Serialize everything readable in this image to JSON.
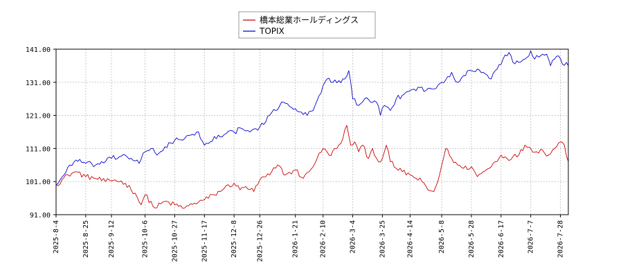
{
  "chart_data": {
    "type": "line",
    "title": "",
    "xlabel": "",
    "ylabel": "",
    "ylim": [
      91.0,
      141.0
    ],
    "yticks": [
      "141.00",
      "131.00",
      "121.00",
      "111.00",
      "101.00",
      "91.00"
    ],
    "ytick_values": [
      141,
      131,
      121,
      111,
      101,
      91
    ],
    "xtick_labels": [
      "2025-8-4",
      "2025-8-25",
      "2025-9-12",
      "2025-10-6",
      "2025-10-27",
      "2025-11-17",
      "2025-12-8",
      "2025-12-26",
      "2026-1-21",
      "2026-2-10",
      "2026-3-4",
      "2026-3-25",
      "2026-4-14",
      "2026-5-8",
      "2026-5-28",
      "2026-6-17",
      "2026-7-7",
      "2026-7-28"
    ],
    "xtick_index": [
      0,
      15,
      28,
      45,
      60,
      75,
      90,
      103,
      121,
      135,
      150,
      165,
      179,
      195,
      210,
      225,
      240,
      255
    ],
    "n_points": 260,
    "grid": true,
    "legend_position": "top-center",
    "series": [
      {
        "name": "橋本総業ホールディングス",
        "color": "#cc0000",
        "anchors": [
          [
            0,
            100
          ],
          [
            6,
            103
          ],
          [
            10,
            104
          ],
          [
            15,
            102.5
          ],
          [
            20,
            102
          ],
          [
            25,
            101
          ],
          [
            30,
            101.5
          ],
          [
            35,
            100.5
          ],
          [
            40,
            97.5
          ],
          [
            43,
            94
          ],
          [
            45,
            97
          ],
          [
            50,
            93
          ],
          [
            55,
            95
          ],
          [
            60,
            94
          ],
          [
            65,
            93
          ],
          [
            70,
            94.5
          ],
          [
            75,
            95.5
          ],
          [
            80,
            97
          ],
          [
            85,
            99
          ],
          [
            90,
            100.5
          ],
          [
            93,
            98.5
          ],
          [
            96,
            99.5
          ],
          [
            100,
            98
          ],
          [
            103,
            101.5
          ],
          [
            108,
            103
          ],
          [
            112,
            106
          ],
          [
            116,
            103
          ],
          [
            121,
            104.5
          ],
          [
            125,
            102
          ],
          [
            128,
            104
          ],
          [
            132,
            108
          ],
          [
            135,
            111
          ],
          [
            138,
            109
          ],
          [
            142,
            111
          ],
          [
            145,
            114
          ],
          [
            147,
            118
          ],
          [
            149,
            112
          ],
          [
            151,
            113
          ],
          [
            153,
            110
          ],
          [
            155,
            112
          ],
          [
            158,
            108
          ],
          [
            160,
            111
          ],
          [
            163,
            107
          ],
          [
            165,
            108
          ],
          [
            167,
            112
          ],
          [
            169,
            107
          ],
          [
            172,
            105
          ],
          [
            175,
            104
          ],
          [
            179,
            103
          ],
          [
            182,
            102
          ],
          [
            185,
            101
          ],
          [
            188,
            98.5
          ],
          [
            191,
            98
          ],
          [
            193,
            101
          ],
          [
            195,
            106
          ],
          [
            197,
            111
          ],
          [
            200,
            108
          ],
          [
            203,
            106
          ],
          [
            206,
            105
          ],
          [
            210,
            105.5
          ],
          [
            213,
            102.5
          ],
          [
            216,
            104
          ],
          [
            219,
            105
          ],
          [
            222,
            107
          ],
          [
            225,
            109
          ],
          [
            228,
            108
          ],
          [
            231,
            108.5
          ],
          [
            234,
            109
          ],
          [
            237,
            112
          ],
          [
            240,
            111
          ],
          [
            243,
            110
          ],
          [
            246,
            110.5
          ],
          [
            249,
            109
          ],
          [
            252,
            111
          ],
          [
            255,
            113
          ],
          [
            257,
            112
          ],
          [
            259,
            107
          ]
        ]
      },
      {
        "name": "TOPIX",
        "color": "#0000cc",
        "anchors": [
          [
            0,
            100
          ],
          [
            4,
            103
          ],
          [
            7,
            106
          ],
          [
            10,
            107.5
          ],
          [
            15,
            106.5
          ],
          [
            20,
            106
          ],
          [
            25,
            107
          ],
          [
            28,
            108
          ],
          [
            32,
            108.5
          ],
          [
            35,
            109
          ],
          [
            38,
            108
          ],
          [
            42,
            106.5
          ],
          [
            45,
            110
          ],
          [
            48,
            111
          ],
          [
            51,
            109
          ],
          [
            55,
            111.5
          ],
          [
            60,
            113.5
          ],
          [
            65,
            114
          ],
          [
            70,
            115
          ],
          [
            72,
            116
          ],
          [
            75,
            112
          ],
          [
            78,
            113
          ],
          [
            82,
            115
          ],
          [
            86,
            115.5
          ],
          [
            90,
            116
          ],
          [
            94,
            117
          ],
          [
            98,
            116
          ],
          [
            103,
            117.5
          ],
          [
            106,
            119
          ],
          [
            108,
            121
          ],
          [
            111,
            122.5
          ],
          [
            114,
            125
          ],
          [
            117,
            124.5
          ],
          [
            121,
            123
          ],
          [
            124,
            122
          ],
          [
            127,
            121
          ],
          [
            130,
            122.5
          ],
          [
            132,
            125.5
          ],
          [
            135,
            130
          ],
          [
            137,
            132
          ],
          [
            140,
            131
          ],
          [
            143,
            131.5
          ],
          [
            146,
            132
          ],
          [
            148,
            134.5
          ],
          [
            150,
            126
          ],
          [
            153,
            124
          ],
          [
            156,
            126
          ],
          [
            159,
            125
          ],
          [
            162,
            125
          ],
          [
            164,
            121
          ],
          [
            166,
            124
          ],
          [
            169,
            122.5
          ],
          [
            172,
            126
          ],
          [
            175,
            127
          ],
          [
            179,
            128.5
          ],
          [
            183,
            129.5
          ],
          [
            187,
            128.5
          ],
          [
            191,
            129
          ],
          [
            195,
            131
          ],
          [
            200,
            134
          ],
          [
            203,
            131
          ],
          [
            206,
            133
          ],
          [
            210,
            134.5
          ],
          [
            213,
            135
          ],
          [
            216,
            134
          ],
          [
            220,
            132
          ],
          [
            223,
            135
          ],
          [
            226,
            138
          ],
          [
            229,
            140
          ],
          [
            231,
            137
          ],
          [
            234,
            137
          ],
          [
            237,
            138
          ],
          [
            240,
            140.5
          ],
          [
            242,
            138
          ],
          [
            245,
            139
          ],
          [
            248,
            139.5
          ],
          [
            250,
            136
          ],
          [
            252,
            138
          ],
          [
            254,
            139
          ],
          [
            256,
            136.5
          ],
          [
            258,
            137
          ],
          [
            259,
            136
          ]
        ]
      }
    ]
  }
}
